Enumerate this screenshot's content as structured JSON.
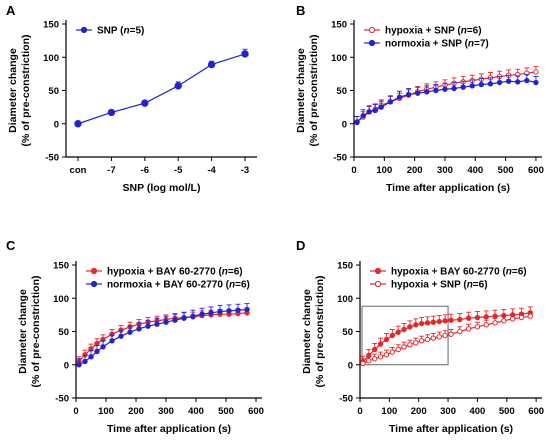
{
  "colors": {
    "red": "#e8262b",
    "blue": "#2323d2",
    "axis": "#000000",
    "box": "#666666"
  },
  "chart_data": [
    {
      "panel": "A",
      "type": "line",
      "categories": [
        "con",
        "-7",
        "-6",
        "-5",
        "-4",
        "-3"
      ],
      "xlabel": "SNP (log mol/L)",
      "ylabel": [
        "Diameter change",
        "(% of pre-constriction)"
      ],
      "ylim": [
        -50,
        150
      ],
      "yticks": [
        "-50",
        "0",
        "50",
        "100",
        "150"
      ],
      "legend": [
        {
          "prefix": "SNP (",
          "n": "n",
          "suffix": "=5)",
          "color": "blue"
        }
      ],
      "series": [
        {
          "color": "blue",
          "filled": true,
          "values": [
            0,
            17,
            31,
            57,
            89,
            105
          ],
          "errors": [
            2,
            3,
            4,
            6,
            5,
            7
          ]
        }
      ]
    },
    {
      "panel": "B",
      "type": "line",
      "xlabel": "Time after application (s)",
      "xlim": [
        0,
        620
      ],
      "xticks": [
        "0",
        "100",
        "200",
        "300",
        "400",
        "500",
        "600"
      ],
      "ylabel": [
        "Diameter change",
        "(% of pre-constriction)"
      ],
      "ylim": [
        -50,
        150
      ],
      "yticks": [
        "-50",
        "0",
        "50",
        "100",
        "150"
      ],
      "legend": [
        {
          "prefix": "hypoxia + SNP (",
          "n": "n",
          "suffix": "=6)",
          "color": "red"
        },
        {
          "prefix": "normoxia + SNP (",
          "n": "n",
          "suffix": "=7)",
          "color": "blue"
        }
      ],
      "series": [
        {
          "color": "red",
          "filled": false,
          "x": [
            10,
            30,
            50,
            70,
            90,
            120,
            150,
            180,
            210,
            240,
            270,
            300,
            330,
            360,
            390,
            420,
            450,
            480,
            510,
            540,
            570,
            600
          ],
          "values": [
            3,
            10,
            18,
            22,
            28,
            33,
            38,
            43,
            48,
            52,
            55,
            58,
            61,
            63,
            65,
            67,
            69,
            71,
            73,
            74,
            76,
            78
          ],
          "err": 8
        },
        {
          "color": "blue",
          "filled": true,
          "x": [
            10,
            30,
            50,
            70,
            90,
            120,
            150,
            180,
            210,
            240,
            270,
            300,
            330,
            360,
            390,
            420,
            450,
            480,
            510,
            540,
            570,
            600
          ],
          "values": [
            2,
            12,
            18,
            20,
            25,
            33,
            40,
            44,
            46,
            48,
            50,
            52,
            53,
            55,
            57,
            59,
            60,
            62,
            64,
            63,
            65,
            62
          ],
          "err": 9
        }
      ]
    },
    {
      "panel": "C",
      "type": "line",
      "xlabel": "Time after application (s)",
      "xlim": [
        0,
        620
      ],
      "xticks": [
        "0",
        "100",
        "200",
        "300",
        "400",
        "500",
        "600"
      ],
      "ylabel": [
        "Diameter change",
        "(% of pre-constriction)"
      ],
      "ylim": [
        -50,
        150
      ],
      "yticks": [
        "-50",
        "0",
        "50",
        "100",
        "150"
      ],
      "legend": [
        {
          "prefix": "hypoxia + BAY 60-2770 (",
          "n": "n",
          "suffix": "=6)",
          "color": "red"
        },
        {
          "prefix": "normoxia + BAY 60-2770 (",
          "n": "n",
          "suffix": "=6)",
          "color": "blue"
        }
      ],
      "series": [
        {
          "color": "red",
          "filled": true,
          "x": [
            10,
            30,
            50,
            70,
            90,
            120,
            150,
            180,
            210,
            240,
            270,
            300,
            330,
            360,
            390,
            420,
            450,
            480,
            510,
            540,
            570
          ],
          "values": [
            5,
            15,
            24,
            32,
            38,
            46,
            52,
            57,
            61,
            64,
            66,
            68,
            70,
            71,
            72,
            74,
            75,
            76,
            76,
            77,
            78
          ],
          "err": 7
        },
        {
          "color": "blue",
          "filled": true,
          "x": [
            10,
            30,
            50,
            70,
            90,
            120,
            150,
            180,
            210,
            240,
            270,
            300,
            330,
            360,
            390,
            420,
            450,
            480,
            510,
            540,
            570
          ],
          "values": [
            0,
            5,
            12,
            20,
            27,
            36,
            43,
            49,
            54,
            58,
            61,
            64,
            67,
            70,
            73,
            76,
            78,
            80,
            81,
            82,
            83
          ],
          "err": 9
        }
      ]
    },
    {
      "panel": "D",
      "type": "line",
      "xlabel": "Time after application (s)",
      "xlim": [
        0,
        620
      ],
      "xticks": [
        "0",
        "100",
        "200",
        "300",
        "400",
        "500",
        "600"
      ],
      "ylabel": [
        "Diameter change",
        "(% of pre-constriction)"
      ],
      "ylim": [
        -50,
        150
      ],
      "yticks": [
        "-50",
        "0",
        "50",
        "100",
        "150"
      ],
      "legend": [
        {
          "prefix": "hypoxia + BAY 60-2770 (",
          "n": "n",
          "suffix": "=6)",
          "color": "red",
          "filled": true
        },
        {
          "prefix": "hypoxia + SNP (",
          "n": "n",
          "suffix": "=6)",
          "color": "red",
          "filled": false
        }
      ],
      "highlight_box": {
        "x": [
          0,
          300
        ],
        "y": [
          0,
          88
        ]
      },
      "series": [
        {
          "color": "red",
          "filled": true,
          "x": [
            10,
            30,
            50,
            70,
            90,
            110,
            130,
            150,
            170,
            190,
            210,
            230,
            250,
            270,
            290,
            310,
            340,
            370,
            400,
            430,
            460,
            490,
            520,
            550,
            580
          ],
          "values": [
            4,
            14,
            23,
            31,
            38,
            44,
            49,
            53,
            57,
            60,
            62,
            63,
            64,
            65,
            66,
            67,
            68,
            70,
            71,
            72,
            73,
            74,
            75,
            76,
            78
          ],
          "err": 9
        },
        {
          "color": "red",
          "filled": false,
          "x": [
            10,
            30,
            50,
            70,
            90,
            110,
            130,
            150,
            170,
            190,
            210,
            230,
            250,
            270,
            290,
            310,
            340,
            370,
            400,
            430,
            460,
            490,
            520,
            550,
            580
          ],
          "values": [
            2,
            6,
            9,
            12,
            15,
            19,
            23,
            27,
            30,
            33,
            36,
            38,
            40,
            42,
            44,
            46,
            50,
            54,
            57,
            60,
            63,
            66,
            69,
            71,
            73
          ],
          "err": 7
        }
      ]
    }
  ]
}
